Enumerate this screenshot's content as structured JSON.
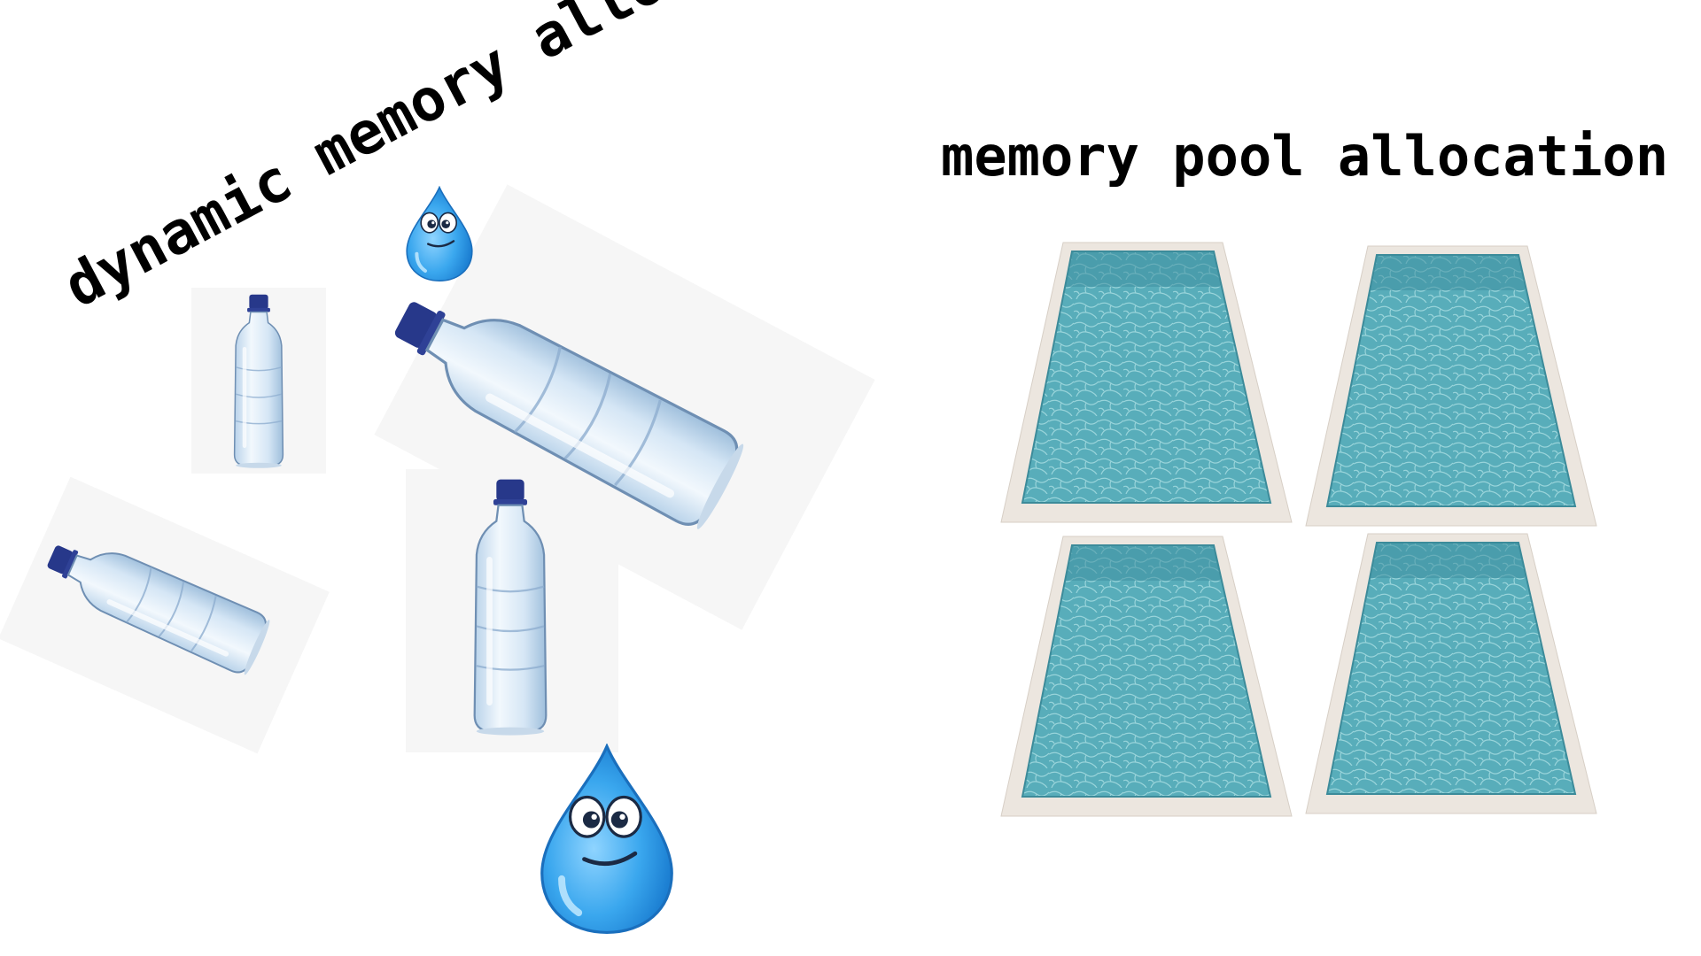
{
  "dynamic": {
    "title": "dynamic memory allocation",
    "bottles": [
      {
        "name": "small-upright-bottle",
        "angle": 0,
        "scale": 0.62
      },
      {
        "name": "large-tilted-bottle",
        "angle": 28,
        "scale": 0.82
      },
      {
        "name": "medium-upright-bottle",
        "angle": 0,
        "scale": 0.92
      },
      {
        "name": "small-tilted-bottle",
        "angle": 24,
        "scale": 0.6
      }
    ],
    "drops": [
      {
        "name": "water-drop-small"
      },
      {
        "name": "water-drop-large"
      }
    ]
  },
  "pool": {
    "title": "memory pool allocation",
    "pool_count": 4
  },
  "colors": {
    "text": "#000000",
    "bottle_cap": "#2a3a8c",
    "bottle_body": "#dceaf8",
    "drop": "#38a6ec",
    "pool_water": "#4fa6b4",
    "pool_deck": "#ece6df",
    "photo_bg": "#f6f6f6"
  }
}
